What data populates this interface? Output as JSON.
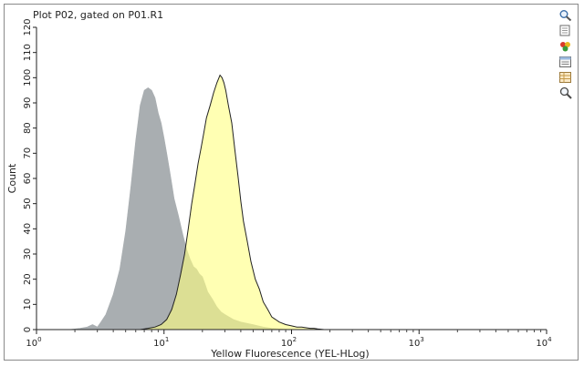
{
  "chart_data": {
    "type": "area",
    "title": "Plot P02, gated on P01.R1",
    "xlabel": "Yellow Fluorescence (YEL-HLog)",
    "ylabel": "Count",
    "xscale": "log",
    "xlim": [
      1,
      10000
    ],
    "ylim": [
      0,
      120
    ],
    "xticks": [
      {
        "value": 1,
        "base": "10",
        "exp": "0"
      },
      {
        "value": 10,
        "base": "10",
        "exp": "1"
      },
      {
        "value": 100,
        "base": "10",
        "exp": "2"
      },
      {
        "value": 1000,
        "base": "10",
        "exp": "3"
      },
      {
        "value": 10000,
        "base": "10",
        "exp": "4"
      }
    ],
    "yticks": [
      0,
      10,
      20,
      30,
      40,
      50,
      60,
      70,
      80,
      90,
      100,
      110,
      120
    ],
    "series": [
      {
        "color": "#a9aeb1",
        "x": [
          1.8,
          2.2,
          2.5,
          2.75,
          3.0,
          3.2,
          3.5,
          4.0,
          4.5,
          5.0,
          5.5,
          6.0,
          6.5,
          7.0,
          7.5,
          8.0,
          8.5,
          9.0,
          9.5,
          10.0,
          10.5,
          11.0,
          11.5,
          12.0,
          13.0,
          14.0,
          15.0,
          16.0,
          17.0,
          18.0,
          19.0,
          20.0,
          21.0,
          22.0,
          24.0,
          26.0,
          28.0,
          30.0,
          35.0,
          40.0,
          50.0,
          60.0,
          70.0,
          80.0,
          100.0
        ],
        "y": [
          0,
          0.5,
          1,
          2,
          1,
          3,
          6,
          14,
          24,
          39,
          57,
          75,
          89,
          95,
          96,
          95,
          92,
          86,
          82,
          76,
          70,
          64,
          58,
          52,
          45,
          38,
          32,
          28,
          25,
          24,
          22,
          21,
          18,
          15,
          12,
          9,
          7,
          6,
          4,
          3,
          2,
          1,
          0.5,
          0.3,
          0
        ]
      },
      {
        "color": "#ffff80",
        "x": [
          6.5,
          7.5,
          8.5,
          9.5,
          10.5,
          11.5,
          12.5,
          13.5,
          14.5,
          15.5,
          16.5,
          17.5,
          18.5,
          19.5,
          20.5,
          21.5,
          23.0,
          24.5,
          26.0,
          27.5,
          28.5,
          29.5,
          30.5,
          32.0,
          34.0,
          36.0,
          38.0,
          40.0,
          42.0,
          45.0,
          48.0,
          52.0,
          56.0,
          60.0,
          65.0,
          70.0,
          75.0,
          80.0,
          90.0,
          100.0,
          110.0,
          120.0,
          140.0,
          150.0,
          160.0,
          180.0
        ],
        "y": [
          0,
          0.5,
          1,
          2,
          4,
          8,
          14,
          22,
          30,
          40,
          50,
          58,
          66,
          72,
          78,
          84,
          89,
          94,
          98,
          101,
          100,
          98,
          95,
          89,
          82,
          71,
          61,
          51,
          43,
          35,
          27,
          20,
          16,
          11,
          8,
          5,
          4,
          3,
          2,
          1.5,
          1,
          1,
          0.5,
          0.5,
          0.3,
          0
        ]
      }
    ]
  }
}
